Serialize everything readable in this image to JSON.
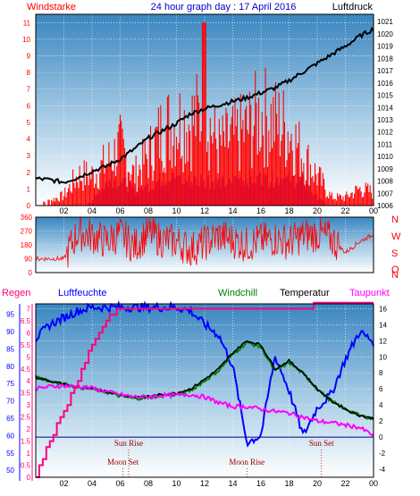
{
  "chart_data": [
    {
      "type": "line",
      "title": "24 hour graph day : 17 April 2016",
      "left_label": "Windstarke",
      "right_label": "Luftdruck",
      "x_ticks": [
        "02",
        "04",
        "06",
        "08",
        "10",
        "12",
        "14",
        "16",
        "18",
        "20",
        "22",
        "00"
      ],
      "y_left_ticks": [
        0,
        1,
        2,
        3,
        4,
        5,
        6,
        7,
        8,
        9,
        10,
        11
      ],
      "y_right_ticks": [
        1006,
        1007,
        1008,
        1009,
        1010,
        1011,
        1012,
        1013,
        1014,
        1015,
        1016,
        1017,
        1018,
        1019,
        1020,
        1021
      ],
      "ylim_left": [
        0,
        11.5
      ],
      "ylim_right": [
        1006,
        1021.6
      ],
      "series": [
        {
          "name": "Luftdruck",
          "axis": "right",
          "color": "#000000",
          "x": [
            0,
            1,
            2,
            3,
            4,
            5,
            6,
            7,
            8,
            9,
            10,
            11,
            12,
            13,
            14,
            15,
            16,
            17,
            18,
            19,
            20,
            21,
            22,
            23,
            24
          ],
          "values": [
            1008.2,
            1008.1,
            1007.9,
            1008.3,
            1008.8,
            1009.2,
            1009.8,
            1010.6,
            1011.5,
            1012.1,
            1012.7,
            1013.5,
            1013.9,
            1014.2,
            1014.5,
            1014.8,
            1015.2,
            1015.6,
            1016.2,
            1016.9,
            1017.6,
            1018.3,
            1019.0,
            1019.8,
            1020.4
          ]
        },
        {
          "name": "Gust",
          "axis": "left",
          "color": "#ff0000",
          "x": [
            0,
            1,
            2,
            3,
            4,
            5,
            6,
            7,
            8,
            9,
            10,
            11,
            12,
            13,
            14,
            15,
            16,
            17,
            18,
            19,
            20,
            21,
            22,
            23,
            24
          ],
          "values": [
            0.0,
            0.3,
            0.6,
            1.8,
            1.8,
            2.5,
            3.5,
            1.8,
            3.0,
            4.5,
            5.0,
            5.0,
            5.5,
            3.5,
            4.0,
            4.5,
            5.5,
            5.0,
            4.5,
            3.0,
            1.8,
            0.5,
            0.5,
            1.0,
            0.8
          ]
        },
        {
          "name": "Wind",
          "axis": "left",
          "color": "#0000ff",
          "x": [
            0,
            1,
            2,
            3,
            4,
            5,
            6,
            7,
            8,
            9,
            10,
            11,
            12,
            13,
            14,
            15,
            16,
            17,
            18,
            19,
            20,
            21,
            22,
            23,
            24
          ],
          "values": [
            0,
            0,
            0,
            0,
            0.3,
            1.5,
            1.8,
            1.0,
            1.3,
            1.8,
            1.8,
            1.6,
            1.8,
            1.5,
            1.6,
            1.8,
            1.8,
            1.8,
            1.8,
            1.6,
            0.5,
            0,
            0,
            0.2,
            0
          ]
        }
      ]
    },
    {
      "type": "line",
      "y_ticks": [
        0,
        90,
        180,
        270,
        360
      ],
      "compass_labels": [
        "N",
        "W",
        "S",
        "O",
        "N"
      ],
      "ylim": [
        0,
        360
      ],
      "series": [
        {
          "name": "Windrichtung",
          "color": "#ff0000",
          "x": [
            0,
            1,
            2,
            3,
            4,
            5,
            6,
            7,
            8,
            9,
            10,
            11,
            12,
            13,
            14,
            15,
            16,
            17,
            18,
            19,
            20,
            21,
            22,
            23,
            24
          ],
          "values": [
            90,
            90,
            90,
            260,
            240,
            200,
            250,
            170,
            260,
            210,
            200,
            150,
            190,
            240,
            210,
            180,
            210,
            220,
            200,
            240,
            250,
            220,
            130,
            200,
            250
          ]
        }
      ]
    },
    {
      "type": "line",
      "labels": {
        "rain": "Regen",
        "humidity": "Luftfeuchte",
        "windchill": "Windchill",
        "temperature": "Temperatur",
        "dewpoint": "Taupunkt"
      },
      "y_rain_ticks": [
        0,
        0.5,
        1,
        1.5,
        2,
        2.5,
        3,
        3.5,
        4,
        4.5,
        5,
        5.5,
        6,
        6.5,
        7
      ],
      "y_humidity_ticks": [
        50,
        55,
        60,
        65,
        70,
        75,
        80,
        85,
        90,
        95
      ],
      "y_temp_ticks": [
        -4,
        -2,
        0,
        2,
        4,
        6,
        8,
        10,
        12,
        14,
        16
      ],
      "ylim_rain": [
        0,
        7.2
      ],
      "ylim_humidity": [
        48,
        98
      ],
      "ylim_temp": [
        -5,
        16.6
      ],
      "events": [
        {
          "label": "Sun Rise",
          "hour": 6.6,
          "row": "top"
        },
        {
          "label": "Moon Set",
          "hour": 6.2,
          "row": "bottom"
        },
        {
          "label": "Moon Rise",
          "hour": 15.0,
          "row": "bottom"
        },
        {
          "label": "Sun Set",
          "hour": 20.3,
          "row": "top"
        }
      ],
      "series": [
        {
          "name": "Luftfeuchte",
          "axis": "humidity",
          "color": "#0000ff",
          "x": [
            0,
            1,
            2,
            3,
            4,
            5,
            6,
            7,
            8,
            9,
            10,
            11,
            12,
            13,
            14,
            15,
            16,
            17,
            18,
            19,
            20,
            21,
            22,
            23,
            24
          ],
          "values": [
            88,
            92,
            94,
            96,
            97,
            97,
            97,
            97,
            97,
            97,
            97,
            96,
            92,
            89,
            80,
            58,
            60,
            83,
            73,
            60,
            68,
            72,
            82,
            90,
            87
          ]
        },
        {
          "name": "Temperatur",
          "axis": "temp",
          "color": "#000000",
          "x": [
            0,
            1,
            2,
            3,
            4,
            5,
            6,
            7,
            8,
            9,
            10,
            11,
            12,
            13,
            14,
            15,
            16,
            17,
            18,
            19,
            20,
            21,
            22,
            23,
            24
          ],
          "values": [
            7.5,
            7.0,
            6.6,
            6.2,
            6.0,
            5.7,
            5.3,
            5.0,
            5.1,
            5.3,
            5.5,
            6.0,
            7.2,
            8.5,
            10.5,
            12.0,
            11.5,
            8.5,
            9.5,
            8.0,
            6.0,
            4.5,
            3.5,
            2.7,
            2.3
          ]
        },
        {
          "name": "Windchill",
          "axis": "temp",
          "color": "#008000",
          "x": [
            0,
            1,
            2,
            3,
            4,
            5,
            6,
            7,
            8,
            9,
            10,
            11,
            12,
            13,
            14,
            15,
            16,
            17,
            18,
            19,
            20,
            21,
            22,
            23,
            24
          ],
          "values": [
            7.5,
            7.0,
            6.6,
            6.2,
            6.0,
            5.6,
            5.1,
            4.8,
            4.9,
            5.2,
            5.3,
            5.8,
            7.0,
            8.3,
            10.3,
            11.8,
            11.2,
            8.2,
            9.3,
            7.9,
            6.0,
            4.5,
            3.5,
            2.7,
            2.3
          ]
        },
        {
          "name": "Taupunkt",
          "axis": "temp",
          "color": "#ff00ff",
          "x": [
            0,
            1,
            2,
            3,
            4,
            5,
            6,
            7,
            8,
            9,
            10,
            11,
            12,
            13,
            14,
            15,
            16,
            17,
            18,
            19,
            20,
            21,
            22,
            23,
            24
          ],
          "values": [
            6.0,
            6.3,
            6.4,
            6.3,
            6.1,
            5.7,
            5.3,
            5.0,
            5.0,
            5.2,
            5.2,
            5.3,
            5.0,
            4.3,
            3.8,
            3.8,
            3.5,
            3.2,
            3.0,
            2.5,
            2.0,
            1.8,
            1.5,
            1.2,
            0.2
          ]
        },
        {
          "name": "Regen",
          "axis": "rain",
          "color": "#ff0080",
          "x": [
            0,
            1,
            2,
            3,
            4,
            5,
            6,
            7,
            8,
            9,
            10,
            11,
            12,
            13,
            14,
            15,
            16,
            17,
            18,
            19,
            20,
            21,
            22,
            23,
            24
          ],
          "values": [
            0,
            1.5,
            2.8,
            4.0,
            5.5,
            6.5,
            7.0,
            7.0,
            7.0,
            7.0,
            7.0,
            7.0,
            7.0,
            7.0,
            7.0,
            7.0,
            7.0,
            7.0,
            7.0,
            7.0,
            7.2,
            7.2,
            7.2,
            7.2,
            7.2
          ]
        }
      ]
    }
  ]
}
